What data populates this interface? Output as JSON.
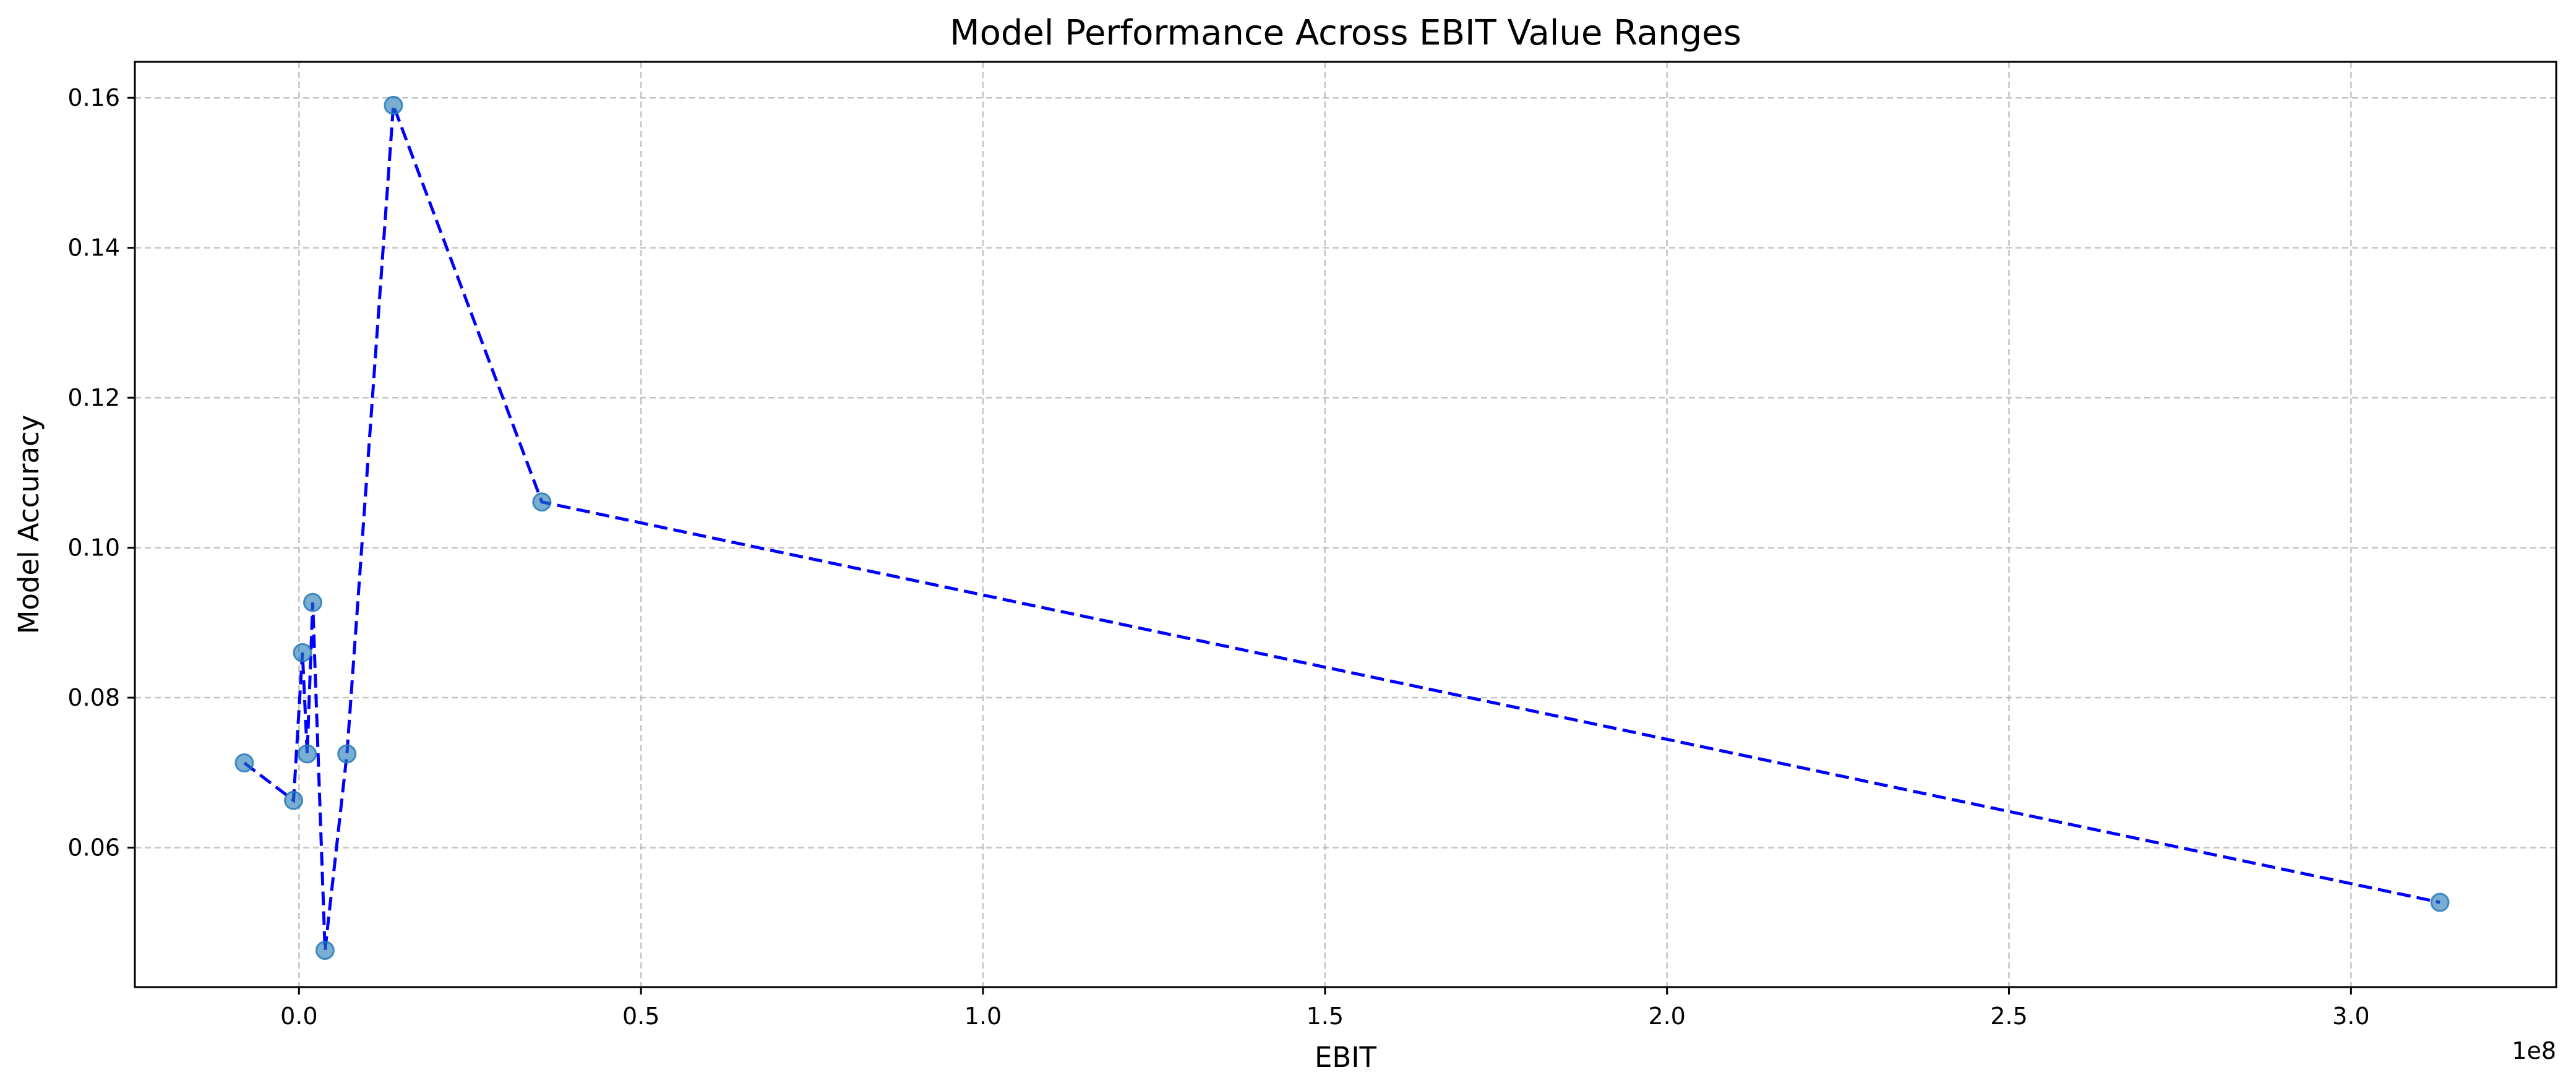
{
  "chart_data": {
    "type": "line",
    "title": "Model Performance Across EBIT Value Ranges",
    "xlabel": "EBIT",
    "ylabel": "Model Accuracy",
    "x_offset_label": "1e8",
    "xlim": [
      -0.24,
      3.3
    ],
    "ylim": [
      0.0414,
      0.1648
    ],
    "x_ticks": [
      0.0,
      0.5,
      1.0,
      1.5,
      2.0,
      2.5,
      3.0
    ],
    "x_tick_labels": [
      "0.0",
      "0.5",
      "1.0",
      "1.5",
      "2.0",
      "2.5",
      "3.0"
    ],
    "y_ticks": [
      0.06,
      0.08,
      0.1,
      0.12,
      0.14,
      0.16
    ],
    "y_tick_labels": [
      "0.06",
      "0.08",
      "0.10",
      "0.12",
      "0.14",
      "0.16"
    ],
    "grid": true,
    "line_color": "#0000ff",
    "line_style": "dashed",
    "marker_color": "#1f77b4",
    "series": [
      {
        "x": [
          -0.08,
          -0.008,
          0.005,
          0.012,
          0.02,
          0.038,
          0.07,
          0.138,
          0.355,
          3.13
        ],
        "y": [
          0.0713,
          0.0663,
          0.086,
          0.0725,
          0.0927,
          0.0463,
          0.0725,
          0.159,
          0.1061,
          0.0527
        ]
      }
    ]
  }
}
